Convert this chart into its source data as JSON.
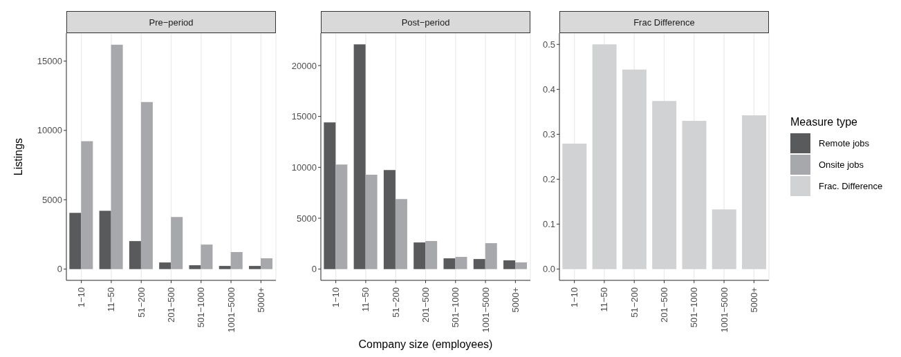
{
  "chart_data": [
    {
      "type": "bar",
      "title": "Pre−period",
      "ylabel": "Listings",
      "legend_title": "Measure type",
      "legend": "right",
      "categories": [
        "1−10",
        "11−50",
        "51−200",
        "201−500",
        "501−1000",
        "1001−5000",
        "5000+"
      ],
      "series": [
        {
          "name": "Remote jobs",
          "color": "#595a5c",
          "values": [
            4050,
            4200,
            2020,
            480,
            280,
            230,
            230
          ]
        },
        {
          "name": "Onsite jobs",
          "color": "#a7a8ab",
          "values": [
            9220,
            16180,
            12050,
            3760,
            1770,
            1230,
            780
          ]
        }
      ],
      "ylim": [
        -810,
        17010
      ],
      "yticks": [
        0,
        5000,
        10000,
        15000
      ],
      "grid": true
    },
    {
      "type": "bar",
      "title": "Post−period",
      "xlabel": "Company size (employees)",
      "legend": "right",
      "categories": [
        "1−10",
        "11−50",
        "51−200",
        "201−500",
        "501−1000",
        "1001−5000",
        "5000+"
      ],
      "series": [
        {
          "name": "Remote jobs",
          "color": "#595a5c",
          "values": [
            14420,
            22080,
            9740,
            2620,
            1060,
            990,
            860
          ]
        },
        {
          "name": "Onsite jobs",
          "color": "#a7a8ab",
          "values": [
            10280,
            9270,
            6890,
            2760,
            1200,
            2550,
            660
          ]
        }
      ],
      "ylim": [
        -1105,
        23185
      ],
      "yticks": [
        0,
        5000,
        10000,
        15000,
        20000
      ],
      "grid": true
    },
    {
      "type": "bar",
      "title": "Frac Difference",
      "legend": "right",
      "categories": [
        "1−10",
        "11−50",
        "51−200",
        "201−500",
        "501−1000",
        "1001−5000",
        "5000+"
      ],
      "series": [
        {
          "name": "Frac. Difference",
          "color": "#d1d2d4",
          "values": [
            0.279,
            0.5,
            0.444,
            0.374,
            0.33,
            0.133,
            0.342
          ]
        }
      ],
      "ylim": [
        -0.025,
        0.525
      ],
      "yticks": [
        {
          "value": 0,
          "label": "0.0"
        },
        0.1,
        0.2,
        0.3,
        0.4,
        0.5
      ],
      "grid": true
    }
  ]
}
